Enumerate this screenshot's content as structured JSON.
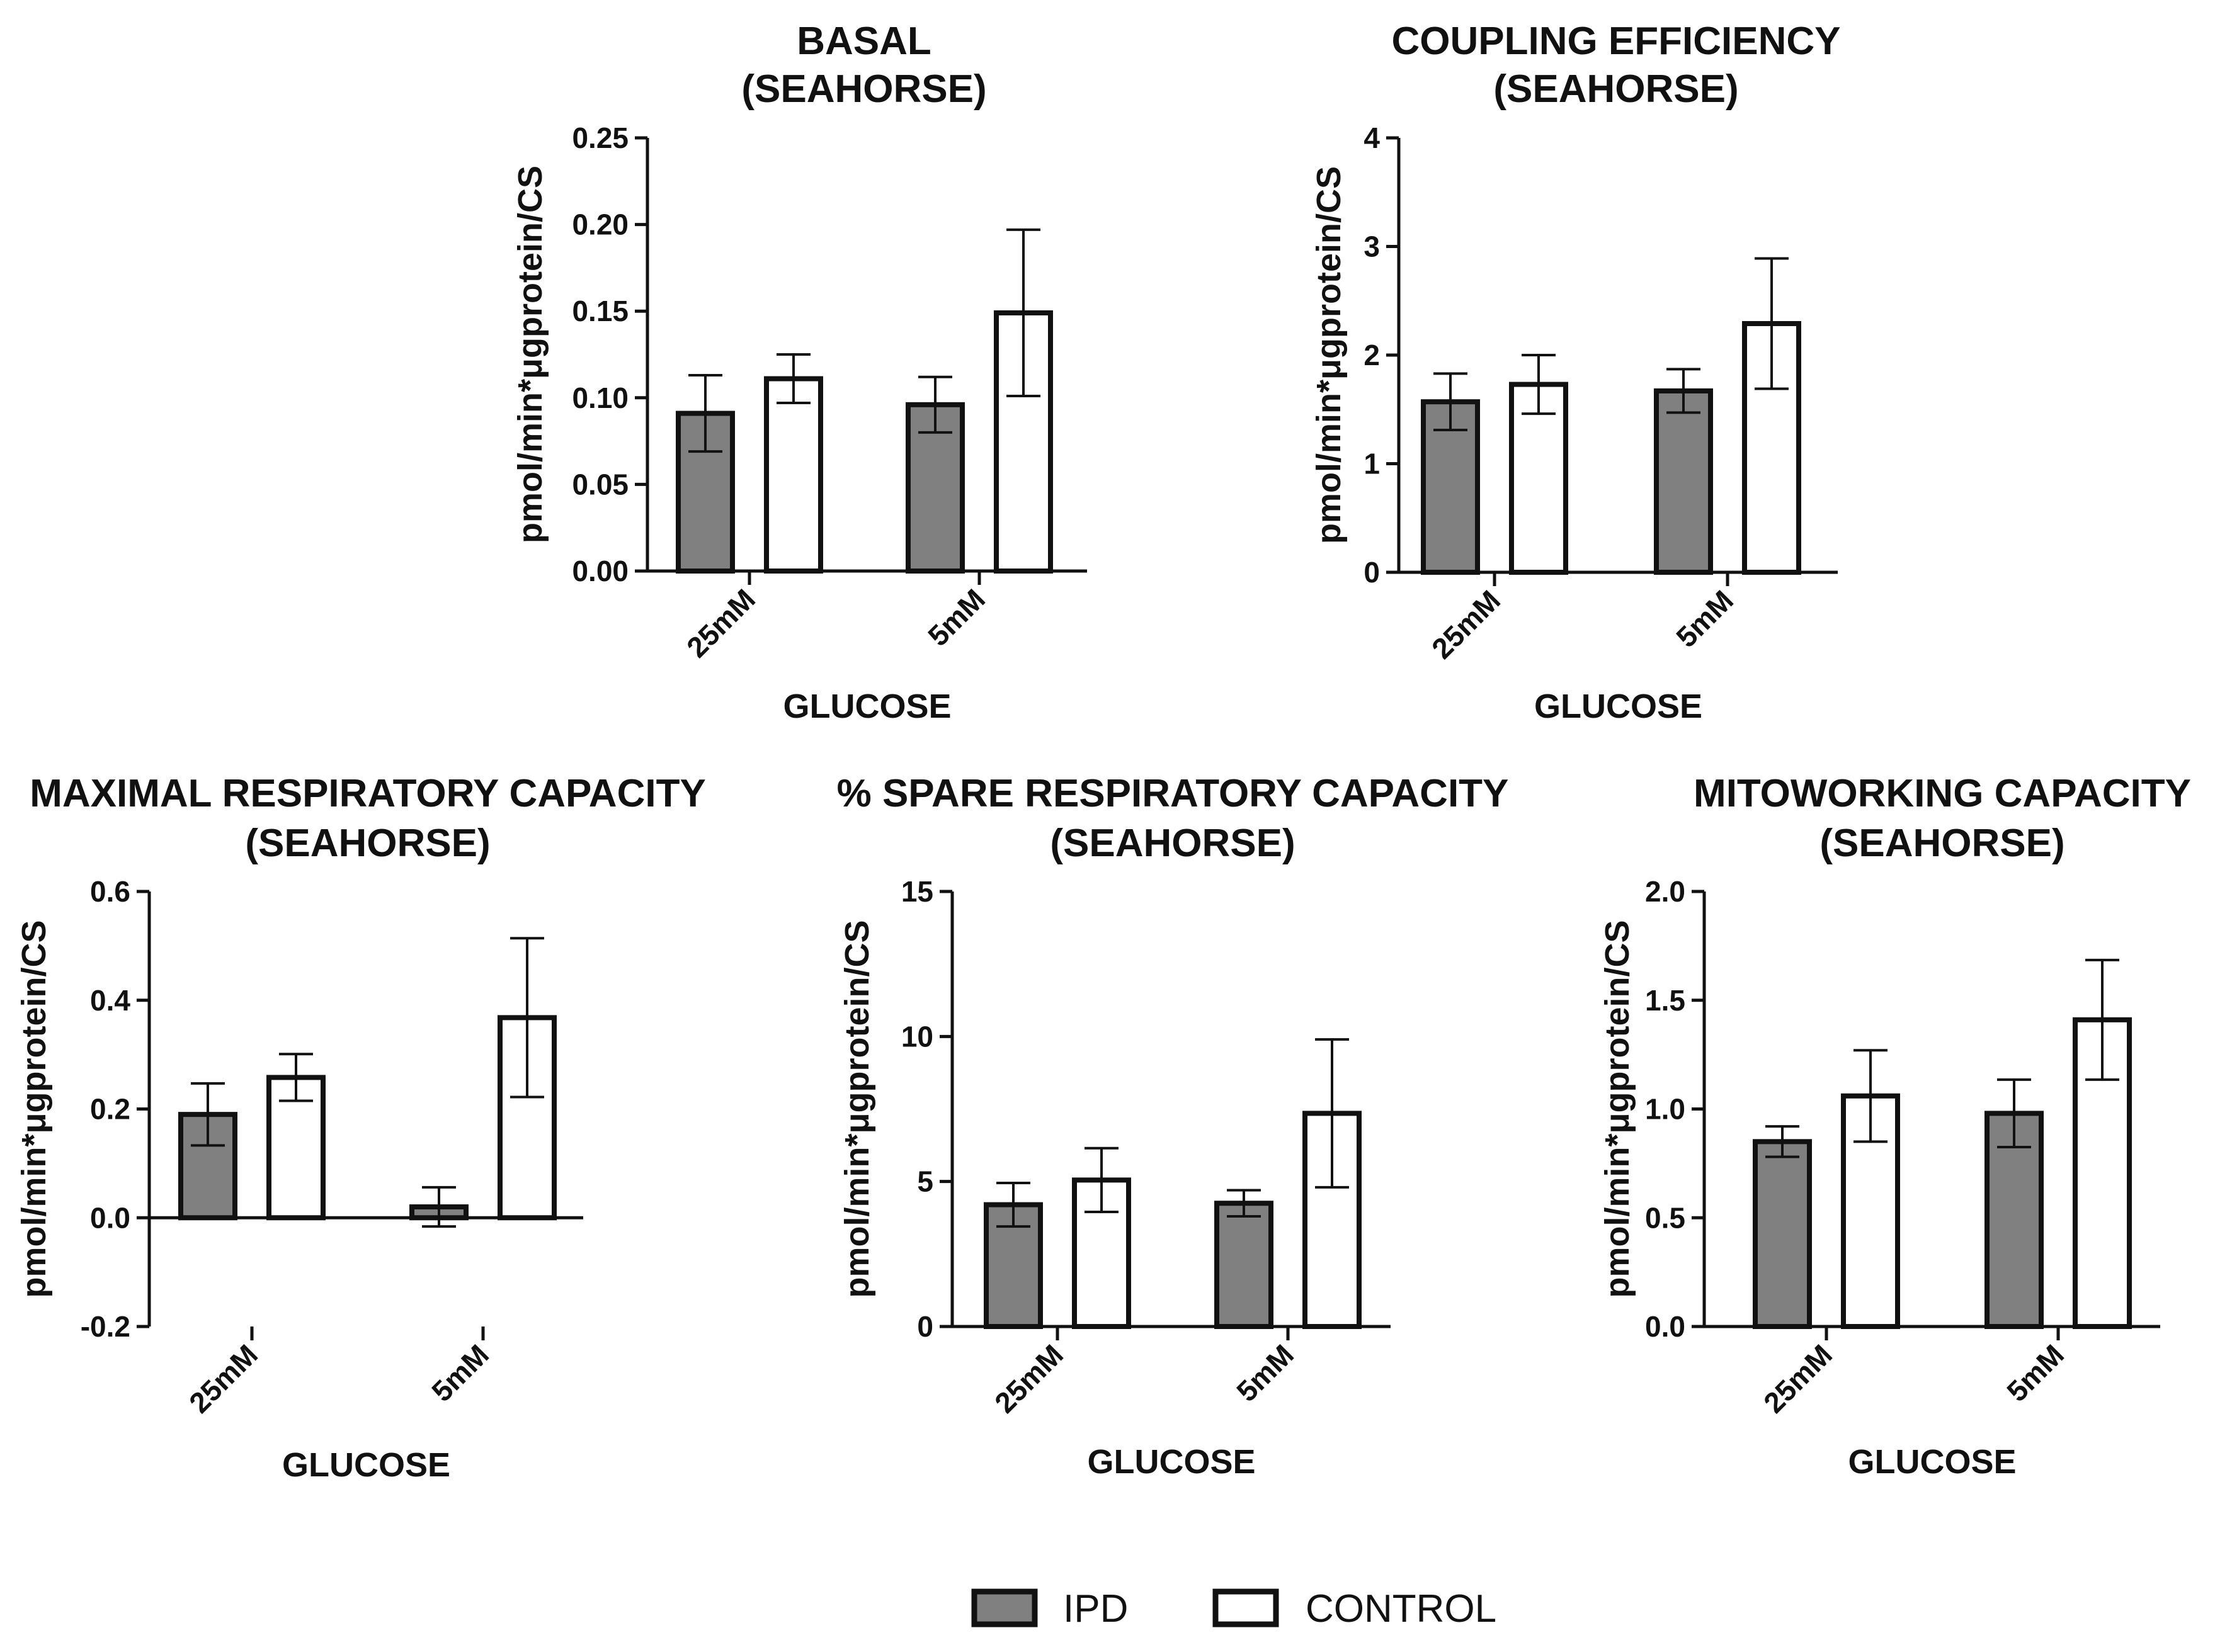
{
  "colors": {
    "ipd": "#808080",
    "control": "#ffffff",
    "stroke": "#111111"
  },
  "legend": [
    {
      "name": "IPD",
      "color": "#808080"
    },
    {
      "name": "CONTROL",
      "color": "#ffffff"
    }
  ],
  "chart_data": [
    {
      "type": "bar",
      "title": [
        "BASAL",
        "(SEAHORSE)"
      ],
      "xlabel": "GLUCOSE",
      "ylabel": "pmol/min*μgprotein/CS",
      "categories": [
        "25mM",
        "5mM"
      ],
      "ylim": [
        0,
        0.25
      ],
      "yticks": [
        0,
        0.05,
        0.1,
        0.15,
        0.2,
        0.25
      ],
      "ytick_labels": [
        "0.00",
        "0.05",
        "0.10",
        "0.15",
        "0.20",
        "0.25"
      ],
      "series": [
        {
          "name": "IPD",
          "values": [
            0.091,
            0.096
          ],
          "errors": [
            0.022,
            0.016
          ]
        },
        {
          "name": "CONTROL",
          "values": [
            0.111,
            0.149
          ],
          "errors": [
            0.014,
            0.048
          ]
        }
      ]
    },
    {
      "type": "bar",
      "title": [
        "COUPLING EFFICIENCY",
        "(SEAHORSE)"
      ],
      "xlabel": "GLUCOSE",
      "ylabel": "pmol/min*μgprotein/CS",
      "categories": [
        "25mM",
        "5mM"
      ],
      "ylim": [
        0,
        4
      ],
      "yticks": [
        0,
        1,
        2,
        3,
        4
      ],
      "ytick_labels": [
        "0",
        "1",
        "2",
        "3",
        "4"
      ],
      "series": [
        {
          "name": "IPD",
          "values": [
            1.57,
            1.67
          ],
          "errors": [
            0.26,
            0.2
          ]
        },
        {
          "name": "CONTROL",
          "values": [
            1.73,
            2.29
          ],
          "errors": [
            0.27,
            0.6
          ]
        }
      ]
    },
    {
      "type": "bar",
      "title": [
        "MAXIMAL RESPIRATORY CAPACITY",
        "(SEAHORSE)"
      ],
      "xlabel": "GLUCOSE",
      "ylabel": "pmol/min*μgprotein/CS",
      "categories": [
        "25mM",
        "5mM"
      ],
      "ylim": [
        -0.2,
        0.6
      ],
      "yticks": [
        -0.2,
        0,
        0.2,
        0.4,
        0.6
      ],
      "ytick_labels": [
        "-0.2",
        "0.0",
        "0.2",
        "0.4",
        "0.6"
      ],
      "series": [
        {
          "name": "IPD",
          "values": [
            0.19,
            0.02
          ],
          "errors": [
            0.057,
            0.036
          ]
        },
        {
          "name": "CONTROL",
          "values": [
            0.258,
            0.368
          ],
          "errors": [
            0.043,
            0.146
          ]
        }
      ]
    },
    {
      "type": "bar",
      "title": [
        "% SPARE RESPIRATORY CAPACITY",
        "(SEAHORSE)"
      ],
      "xlabel": "GLUCOSE",
      "ylabel": "pmol/min*μgprotein/CS",
      "categories": [
        "25mM",
        "5mM"
      ],
      "ylim": [
        0,
        15
      ],
      "yticks": [
        0,
        5,
        10,
        15
      ],
      "ytick_labels": [
        "0",
        "5",
        "10",
        "15"
      ],
      "series": [
        {
          "name": "IPD",
          "values": [
            4.2,
            4.25
          ],
          "errors": [
            0.75,
            0.45
          ]
        },
        {
          "name": "CONTROL",
          "values": [
            5.05,
            7.35
          ],
          "errors": [
            1.1,
            2.55
          ]
        }
      ]
    },
    {
      "type": "bar",
      "title": [
        "MITOWORKING CAPACITY",
        "(SEAHORSE)"
      ],
      "xlabel": "GLUCOSE",
      "ylabel": "pmol/min*μgprotein/CS",
      "categories": [
        "25mM",
        "5mM"
      ],
      "ylim": [
        0,
        2.0
      ],
      "yticks": [
        0,
        0.5,
        1.0,
        1.5,
        2.0
      ],
      "ytick_labels": [
        "0.0",
        "0.5",
        "1.0",
        "1.5",
        "2.0"
      ],
      "series": [
        {
          "name": "IPD",
          "values": [
            0.85,
            0.98
          ],
          "errors": [
            0.07,
            0.155
          ]
        },
        {
          "name": "CONTROL",
          "values": [
            1.06,
            1.41
          ],
          "errors": [
            0.21,
            0.275
          ]
        }
      ]
    }
  ]
}
